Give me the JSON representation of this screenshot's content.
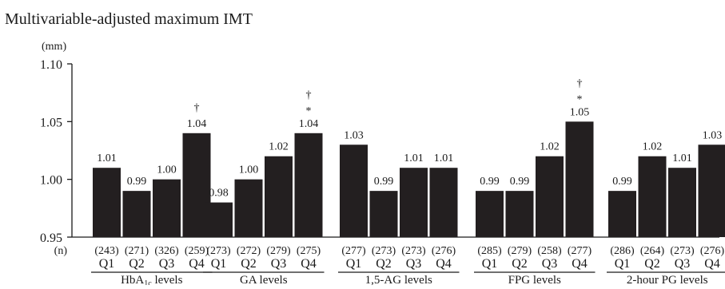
{
  "chart_data": {
    "type": "bar",
    "title": "Multivariable-adjusted maximum IMT",
    "ylabel": "(mm)",
    "ylim": [
      0.95,
      1.1
    ],
    "yticks": [
      "0.95",
      "1.00",
      "1.05",
      "1.10"
    ],
    "n_label": "(n)",
    "grid": false,
    "bar_color": "#231f20",
    "groups": [
      {
        "label": "HbA1c levels",
        "label_main": "HbA",
        "label_sub": "1c",
        "label_rest": " levels",
        "bars": [
          {
            "q": "Q1",
            "n": "(243)",
            "value": 1.01,
            "value_label": "1.01",
            "marks": []
          },
          {
            "q": "Q2",
            "n": "(271)",
            "value": 0.99,
            "value_label": "0.99",
            "marks": []
          },
          {
            "q": "Q3",
            "n": "(326)",
            "value": 1.0,
            "value_label": "1.00",
            "marks": []
          },
          {
            "q": "Q4",
            "n": "(259)",
            "value": 1.04,
            "value_label": "1.04",
            "marks": [
              "†"
            ]
          }
        ]
      },
      {
        "label": "GA levels",
        "bars": [
          {
            "q": "Q1",
            "n": "(273)",
            "value": 0.98,
            "value_label": "0.98",
            "marks": []
          },
          {
            "q": "Q2",
            "n": "(272)",
            "value": 1.0,
            "value_label": "1.00",
            "marks": []
          },
          {
            "q": "Q3",
            "n": "(279)",
            "value": 1.02,
            "value_label": "1.02",
            "marks": []
          },
          {
            "q": "Q4",
            "n": "(275)",
            "value": 1.04,
            "value_label": "1.04",
            "marks": [
              "†",
              "*"
            ]
          }
        ]
      },
      {
        "label": "1,5-AG levels",
        "bars": [
          {
            "q": "Q1",
            "n": "(277)",
            "value": 1.03,
            "value_label": "1.03",
            "marks": []
          },
          {
            "q": "Q2",
            "n": "(273)",
            "value": 0.99,
            "value_label": "0.99",
            "marks": []
          },
          {
            "q": "Q3",
            "n": "(273)",
            "value": 1.01,
            "value_label": "1.01",
            "marks": []
          },
          {
            "q": "Q4",
            "n": "(276)",
            "value": 1.01,
            "value_label": "1.01",
            "marks": []
          }
        ]
      },
      {
        "label": "FPG levels",
        "bars": [
          {
            "q": "Q1",
            "n": "(285)",
            "value": 0.99,
            "value_label": "0.99",
            "marks": []
          },
          {
            "q": "Q2",
            "n": "(279)",
            "value": 0.99,
            "value_label": "0.99",
            "marks": []
          },
          {
            "q": "Q3",
            "n": "(258)",
            "value": 1.02,
            "value_label": "1.02",
            "marks": []
          },
          {
            "q": "Q4",
            "n": "(277)",
            "value": 1.05,
            "value_label": "1.05",
            "marks": [
              "†",
              "*"
            ]
          }
        ]
      },
      {
        "label": "2-hour PG levels",
        "bars": [
          {
            "q": "Q1",
            "n": "(286)",
            "value": 0.99,
            "value_label": "0.99",
            "marks": []
          },
          {
            "q": "Q2",
            "n": "(264)",
            "value": 1.02,
            "value_label": "1.02",
            "marks": []
          },
          {
            "q": "Q3",
            "n": "(273)",
            "value": 1.01,
            "value_label": "1.01",
            "marks": []
          },
          {
            "q": "Q4",
            "n": "(276)",
            "value": 1.03,
            "value_label": "1.03",
            "marks": []
          }
        ]
      }
    ]
  }
}
